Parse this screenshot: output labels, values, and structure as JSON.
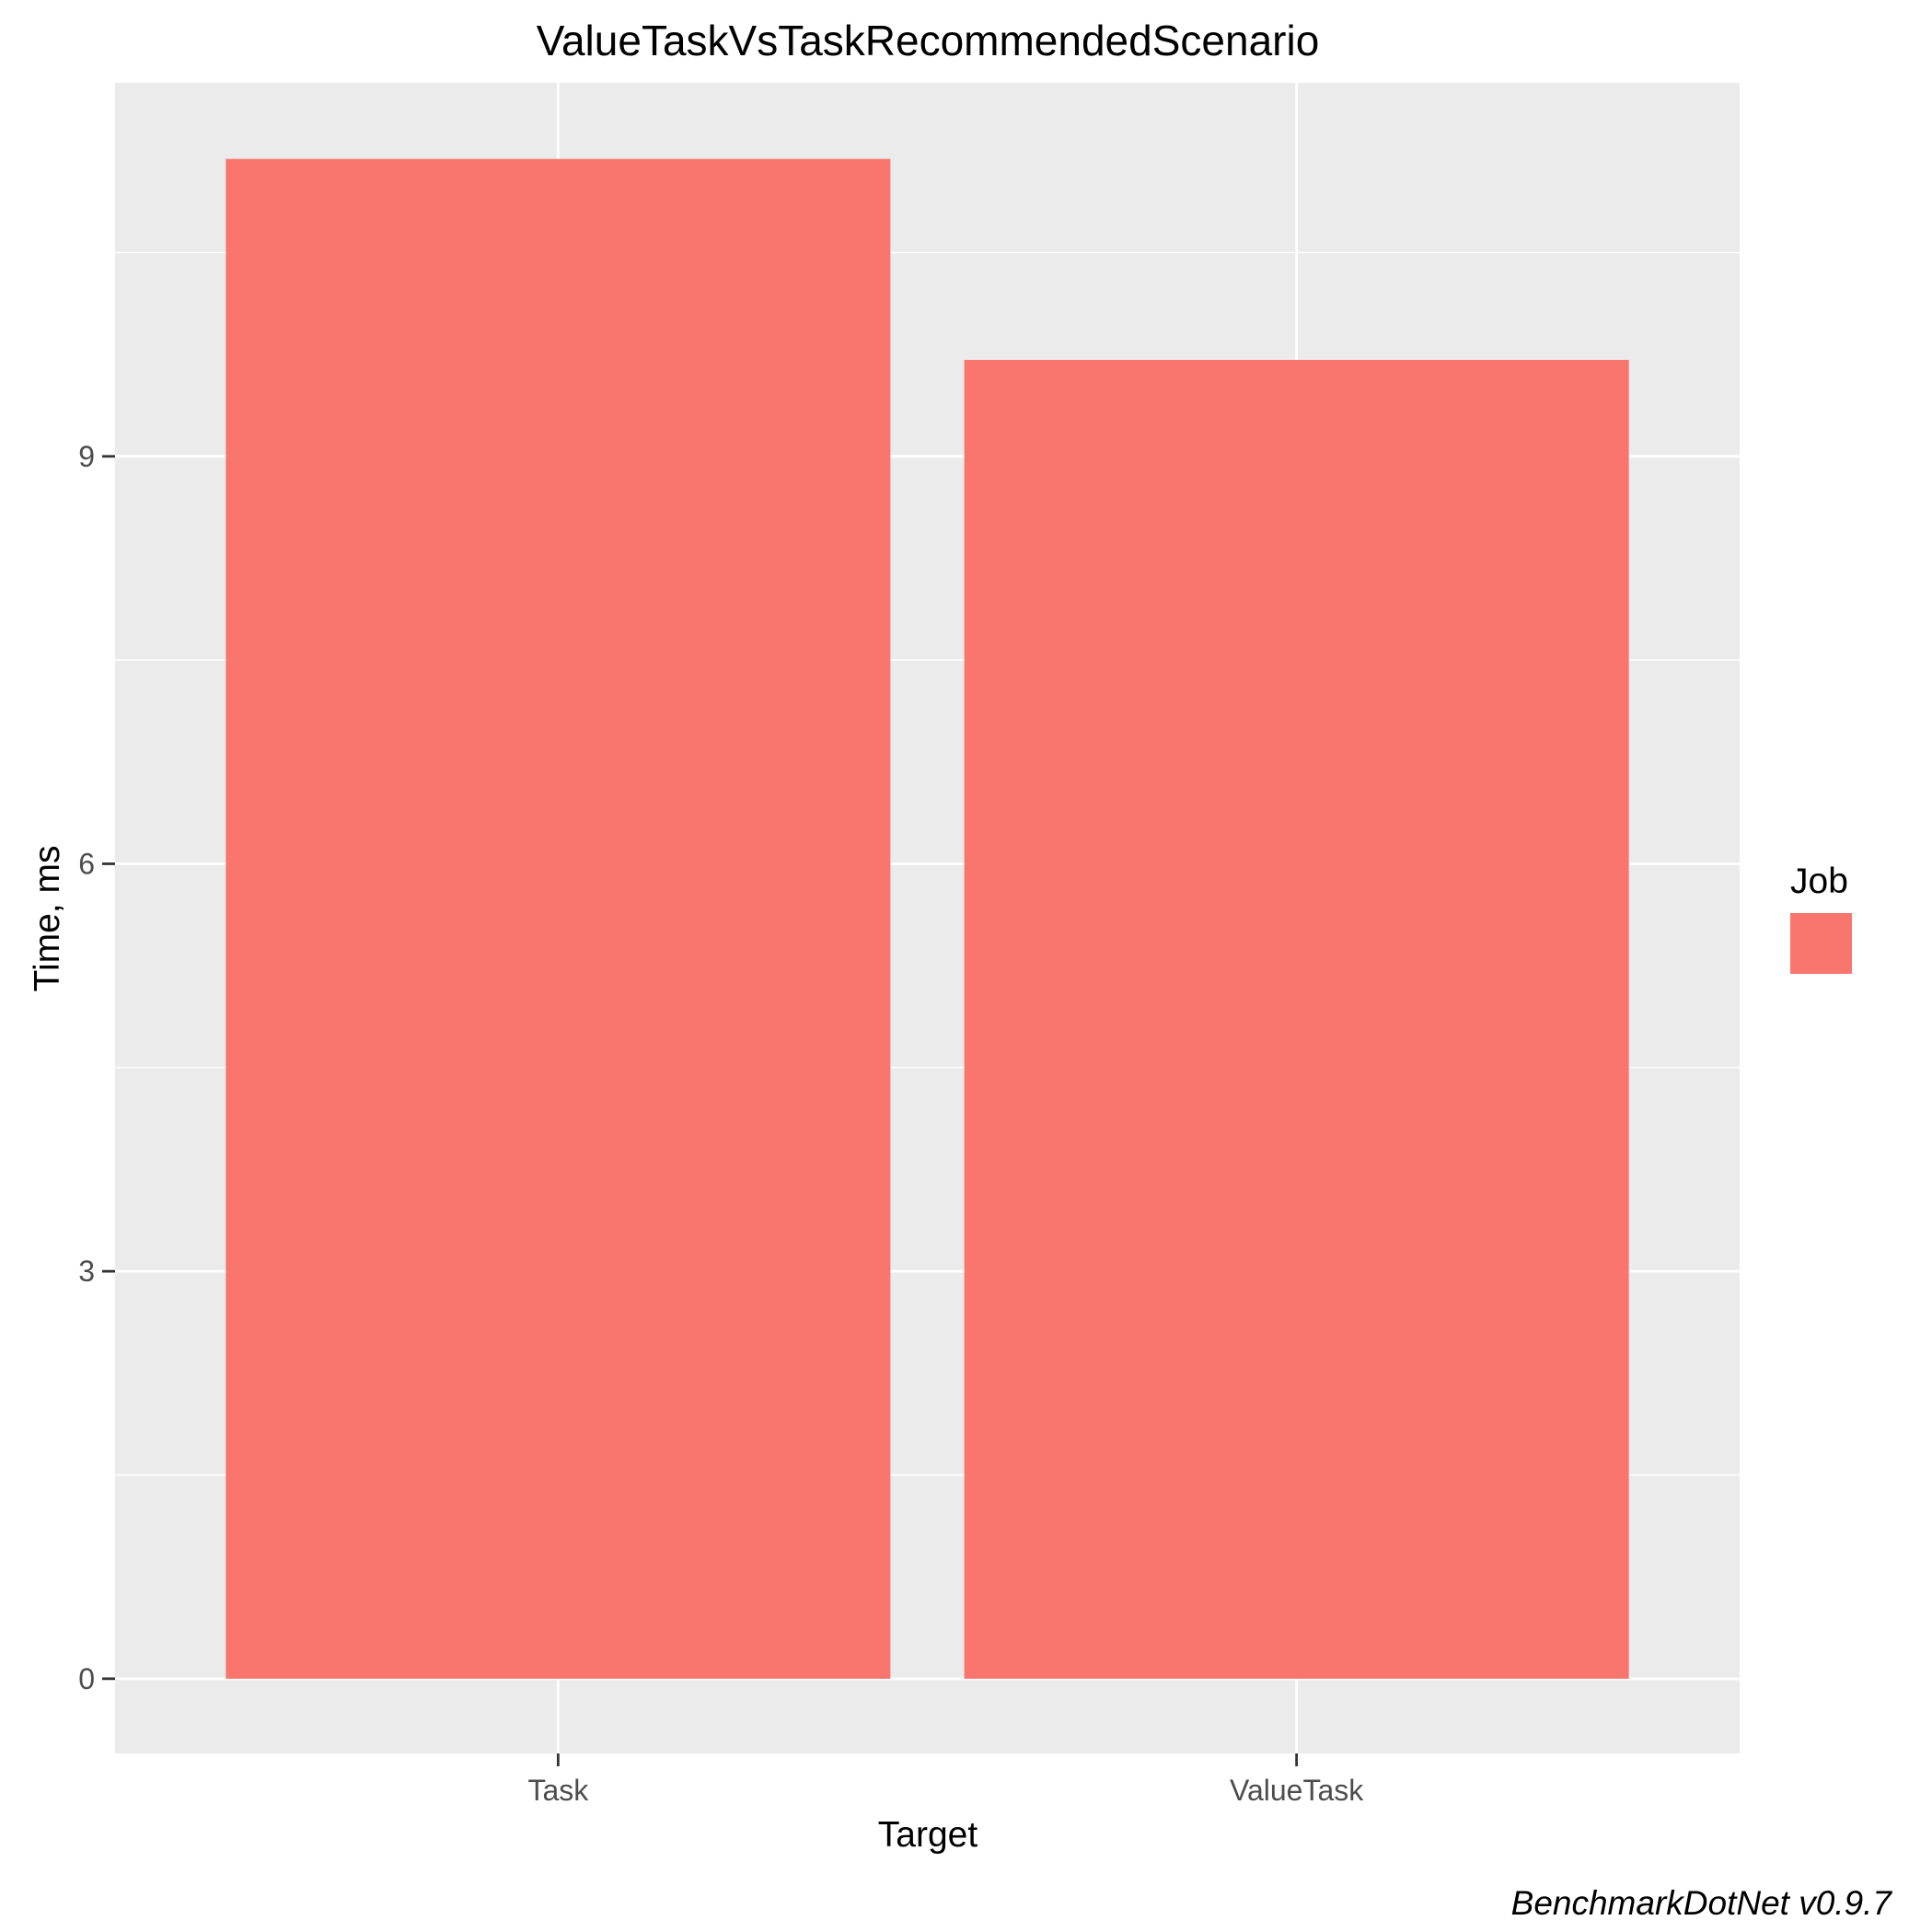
{
  "chart_data": {
    "type": "bar",
    "title": "ValueTaskVsTaskRecommendedScenario",
    "xlabel": "Target",
    "ylabel": "Time, ms",
    "categories": [
      "Task",
      "ValueTask"
    ],
    "series": [
      {
        "values": [
          11.19,
          9.71
        ]
      }
    ],
    "yticks": [
      0,
      3,
      6,
      9
    ],
    "ylim": [
      -0.55,
      11.75
    ],
    "grid": true,
    "legend": {
      "title": "Job",
      "placement": "right"
    },
    "caption": "BenchmarkDotNet v0.9.7",
    "colors": {
      "bar": "#F8766D",
      "panel": "#EBEBEB",
      "grid": "#FFFFFF",
      "tick": "#333333"
    }
  }
}
